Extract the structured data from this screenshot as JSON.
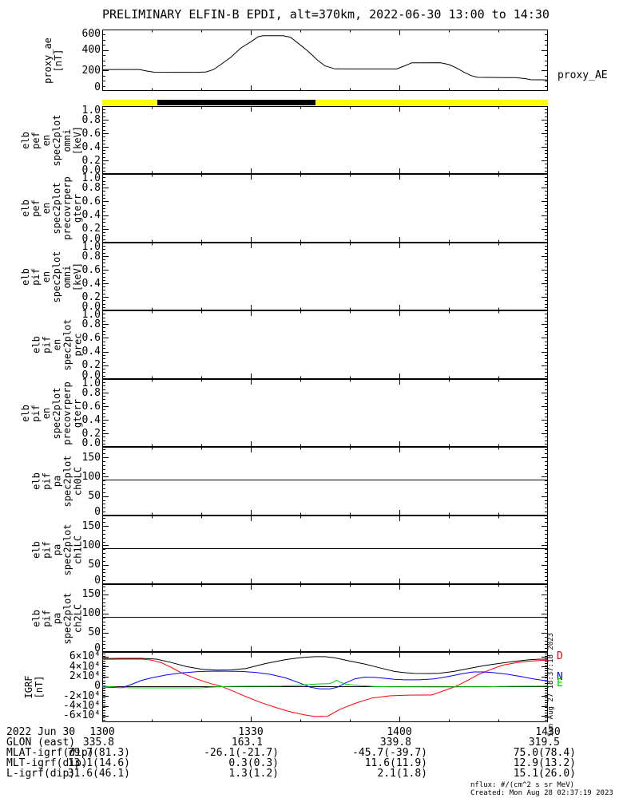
{
  "title": "PRELIMINARY ELFIN-B EPDI, alt=370km, 2022-06-30 13:00 to 14:30",
  "right_labels": {
    "proxy_ae": "proxy_AE"
  },
  "side_note": "Sun Aug 27 18:37:18 2023",
  "footer": {
    "nflux": "nflux: #/(cm^2 s sr MeV)",
    "created": "Created: Mon Aug 28 02:37:19 2023"
  },
  "time_axis": {
    "duration_min": 90,
    "major_minutes": [
      0,
      30,
      60,
      90
    ],
    "major_labels": [
      "1300",
      "1330",
      "1400",
      "1430"
    ],
    "minor_step_min": 10
  },
  "colors": {
    "bar_yellow": "#FFFF00",
    "bar_black": "#000000",
    "igrf_b": "#000000",
    "igrf_d": "#FF0000",
    "igrf_n": "#0000FF",
    "igrf_e": "#00CC00"
  },
  "bottom_table": {
    "rows": [
      {
        "label": "2022 Jun 30",
        "centered": true,
        "align_offset": 15,
        "values": [
          "1300",
          "1330",
          "1400",
          "1430"
        ]
      },
      {
        "label": "GLON (east)",
        "centered": false,
        "align_offset": 15,
        "values": [
          "335.8",
          "163.1",
          "339.8",
          "319.5"
        ]
      },
      {
        "label": "MLAT-igrf(dip)",
        "centered": false,
        "align_offset": 35,
        "values": [
          "79.7(81.3)",
          "-26.1(-21.7)",
          "-45.7(-39.7)",
          "75.0(78.4)"
        ]
      },
      {
        "label": "MLT-igrf(dip)",
        "centered": false,
        "align_offset": 35,
        "values": [
          "13.1(14.6)",
          "0.3(0.3)",
          "11.6(11.9)",
          "12.9(13.2)"
        ]
      },
      {
        "label": "L-igrf(dip)",
        "centered": false,
        "align_offset": 35,
        "values": [
          "31.6(46.1)",
          "1.3(1.2)",
          "2.1(1.8)",
          "15.1(26.0)"
        ]
      }
    ]
  },
  "chart_data": [
    {
      "id": "proxy_ae",
      "type": "line",
      "ylabel_lines": [
        "proxy_ae",
        "[nT]"
      ],
      "ylim": [
        0,
        600
      ],
      "yticks": [
        0,
        200,
        400,
        600
      ],
      "ytick_labels": [
        "0",
        "200",
        "400",
        "600"
      ],
      "yminor_step": 50,
      "series": [
        {
          "name": "proxy_AE",
          "color": "#000000",
          "points": [
            [
              0,
              208
            ],
            [
              2,
              210
            ],
            [
              7.5,
              210
            ],
            [
              9,
              195
            ],
            [
              10.5,
              183
            ],
            [
              14,
              182
            ],
            [
              19.5,
              182
            ],
            [
              21,
              186
            ],
            [
              22.5,
              210
            ],
            [
              24,
              260
            ],
            [
              26,
              330
            ],
            [
              28,
              420
            ],
            [
              30,
              480
            ],
            [
              31.5,
              530
            ],
            [
              32.5,
              540
            ],
            [
              36.5,
              540
            ],
            [
              38,
              525
            ],
            [
              40,
              450
            ],
            [
              41.5,
              390
            ],
            [
              43.5,
              300
            ],
            [
              45,
              245
            ],
            [
              47,
              216
            ],
            [
              50,
              215
            ],
            [
              59.5,
              215
            ],
            [
              61,
              245
            ],
            [
              62.5,
              274
            ],
            [
              68.3,
              276
            ],
            [
              70,
              258
            ],
            [
              71.5,
              225
            ],
            [
              73,
              185
            ],
            [
              74.5,
              150
            ],
            [
              75.8,
              133
            ],
            [
              83.5,
              130
            ],
            [
              85.5,
              120
            ],
            [
              86.5,
              110
            ],
            [
              90,
              108
            ]
          ]
        }
      ]
    },
    {
      "id": "position_bar",
      "type": "bar-indicator",
      "segments": [
        {
          "start_min": 0,
          "end_min": 90,
          "color": "#FFFF00"
        },
        {
          "start_min": 11.2,
          "end_min": 43.0,
          "color": "#000000"
        }
      ]
    },
    {
      "id": "elb_pef_en_omni",
      "type": "spectrogram-empty",
      "ylabel_lines": [
        "elb",
        "pef",
        "en",
        "spec2plot",
        "omni",
        "[keV]"
      ],
      "ylim": [
        0,
        1
      ],
      "yticks": [
        0,
        0.2,
        0.4,
        0.6,
        0.8,
        1.0
      ],
      "ytick_labels": [
        "0.0",
        "0.2",
        "0.4",
        "0.6",
        "0.8",
        "1.0"
      ],
      "yminor_step": 0.05,
      "series": []
    },
    {
      "id": "elb_pef_en_precovrperp",
      "type": "spectrogram-empty",
      "ylabel_lines": [
        "elb",
        "pef",
        "en",
        "spec2plot",
        "precovrperp",
        "gterr"
      ],
      "ylim": [
        0,
        1
      ],
      "yticks": [
        0,
        0.2,
        0.4,
        0.6,
        0.8,
        1.0
      ],
      "ytick_labels": [
        "0.0",
        "0.2",
        "0.4",
        "0.6",
        "0.8",
        "1.0"
      ],
      "yminor_step": 0.05,
      "series": []
    },
    {
      "id": "elb_pif_en_omni",
      "type": "spectrogram-empty",
      "ylabel_lines": [
        "elb",
        "pif",
        "en",
        "spec2plot",
        "omni",
        "[keV]"
      ],
      "ylim": [
        0,
        1
      ],
      "yticks": [
        0,
        0.2,
        0.4,
        0.6,
        0.8,
        1.0
      ],
      "ytick_labels": [
        "0.0",
        "0.2",
        "0.4",
        "0.6",
        "0.8",
        "1.0"
      ],
      "yminor_step": 0.05,
      "series": []
    },
    {
      "id": "elb_pif_en_prec",
      "type": "spectrogram-empty",
      "ylabel_lines": [
        "elb",
        "pif",
        "en",
        "spec2plot",
        "prec"
      ],
      "ylim": [
        0,
        1
      ],
      "yticks": [
        0,
        0.2,
        0.4,
        0.6,
        0.8,
        1.0
      ],
      "ytick_labels": [
        "0.0",
        "0.2",
        "0.4",
        "0.6",
        "0.8",
        "1.0"
      ],
      "yminor_step": 0.05,
      "series": []
    },
    {
      "id": "elb_pif_en_precovrperp",
      "type": "spectrogram-empty",
      "ylabel_lines": [
        "elb",
        "pif",
        "en",
        "spec2plot",
        "precovrperp",
        "gterr"
      ],
      "ylim": [
        0,
        1
      ],
      "yticks": [
        0,
        0.2,
        0.4,
        0.6,
        0.8,
        1.0
      ],
      "ytick_labels": [
        "0.0",
        "0.2",
        "0.4",
        "0.6",
        "0.8",
        "1.0"
      ],
      "yminor_step": 0.05,
      "series": []
    },
    {
      "id": "elb_pif_pa_ch0lc",
      "type": "pitch-angle-empty",
      "ylabel_lines": [
        "elb",
        "pif",
        "pa",
        "spec2plot",
        "ch0LC"
      ],
      "ylim": [
        0,
        177
      ],
      "yticks": [
        0,
        50,
        100,
        150
      ],
      "ytick_labels": [
        "0",
        "50",
        "100",
        "150"
      ],
      "yminor_step": 10,
      "hlines": [
        {
          "value": 92,
          "color": "#000000"
        }
      ],
      "series": []
    },
    {
      "id": "elb_pif_pa_ch1lc",
      "type": "pitch-angle-empty",
      "ylabel_lines": [
        "elb",
        "pif",
        "pa",
        "spec2plot",
        "ch1LC"
      ],
      "ylim": [
        0,
        177
      ],
      "yticks": [
        0,
        50,
        100,
        150
      ],
      "ytick_labels": [
        "0",
        "50",
        "100",
        "150"
      ],
      "yminor_step": 10,
      "hlines": [
        {
          "value": 92,
          "color": "#000000"
        }
      ],
      "series": []
    },
    {
      "id": "elb_pif_pa_ch2lc",
      "type": "pitch-angle-empty",
      "ylabel_lines": [
        "elb",
        "pif",
        "pa",
        "spec2plot",
        "ch2LC"
      ],
      "ylim": [
        0,
        177
      ],
      "yticks": [
        0,
        50,
        100,
        150
      ],
      "ytick_labels": [
        "0",
        "50",
        "100",
        "150"
      ],
      "yminor_step": 10,
      "hlines": [
        {
          "value": 92,
          "color": "#000000"
        }
      ],
      "series": []
    },
    {
      "id": "igrf",
      "type": "line",
      "ylabel_lines": [
        "IGRF",
        "[nT]"
      ],
      "ylim": [
        -73000,
        69500
      ],
      "yticks": [
        -60000,
        -40000,
        -20000,
        0,
        20000,
        40000,
        60000
      ],
      "ytick_labels": [
        "-6×10⁴",
        "-4×10⁴",
        "-2×10⁴",
        "0",
        "2×10⁴",
        "4×10⁴",
        "6×10⁴"
      ],
      "yminor_step": 5000,
      "hlines": [
        {
          "value": 0,
          "color": "#000000"
        }
      ],
      "right_series_labels": [
        {
          "text": "D",
          "color": "#FF0000",
          "value": 61000
        },
        {
          "text": "N",
          "color": "#0000FF",
          "value": 19000
        },
        {
          "text": "E",
          "color": "#00CC00",
          "value": 5000
        }
      ],
      "series": [
        {
          "name": "B",
          "color": "#000000",
          "points": [
            [
              0,
              56000
            ],
            [
              4,
              56500
            ],
            [
              8,
              56500
            ],
            [
              11,
              55000
            ],
            [
              14,
              48000
            ],
            [
              17,
              40000
            ],
            [
              20,
              34500
            ],
            [
              23,
              32800
            ],
            [
              26,
              33000
            ],
            [
              29,
              36000
            ],
            [
              33,
              46000
            ],
            [
              37,
              54000
            ],
            [
              40,
              58000
            ],
            [
              43,
              60000
            ],
            [
              45,
              60000
            ],
            [
              47,
              57500
            ],
            [
              50,
              51000
            ],
            [
              53,
              45000
            ],
            [
              56,
              37500
            ],
            [
              59,
              30000
            ],
            [
              61,
              27500
            ],
            [
              63,
              26000
            ],
            [
              66,
              25800
            ],
            [
              68,
              26200
            ],
            [
              71,
              30000
            ],
            [
              74,
              36000
            ],
            [
              77,
              41500
            ],
            [
              80,
              46000
            ],
            [
              83,
              50000
            ],
            [
              86,
              53500
            ],
            [
              88,
              54800
            ],
            [
              90,
              55000
            ]
          ]
        },
        {
          "name": "D",
          "color": "#FF0000",
          "points": [
            [
              0,
              54500
            ],
            [
              5,
              55000
            ],
            [
              8,
              55000
            ],
            [
              10,
              53000
            ],
            [
              12,
              47500
            ],
            [
              14,
              38000
            ],
            [
              16,
              27000
            ],
            [
              19,
              15000
            ],
            [
              22,
              5000
            ],
            [
              24,
              0
            ],
            [
              26,
              -8000
            ],
            [
              29,
              -21000
            ],
            [
              32,
              -33000
            ],
            [
              35,
              -43000
            ],
            [
              38,
              -52000
            ],
            [
              41,
              -58500
            ],
            [
              43,
              -61500
            ],
            [
              45.5,
              -61000
            ],
            [
              48,
              -47000
            ],
            [
              51,
              -35000
            ],
            [
              54.5,
              -24000
            ],
            [
              58,
              -19500
            ],
            [
              61,
              -18200
            ],
            [
              64,
              -18000
            ],
            [
              66.5,
              -18000
            ],
            [
              69,
              -9000
            ],
            [
              71.5,
              0
            ],
            [
              74,
              13000
            ],
            [
              76,
              24000
            ],
            [
              79,
              36000
            ],
            [
              81,
              43000
            ],
            [
              84,
              48500
            ],
            [
              87,
              51500
            ],
            [
              90,
              53000
            ]
          ]
        },
        {
          "name": "N",
          "color": "#0000FF",
          "points": [
            [
              0,
              -1500
            ],
            [
              2,
              -2500
            ],
            [
              4,
              -3000
            ],
            [
              6,
              4000
            ],
            [
              8,
              12000
            ],
            [
              10,
              17000
            ],
            [
              13,
              23000
            ],
            [
              16,
              27000
            ],
            [
              19,
              29500
            ],
            [
              22,
              30500
            ],
            [
              25,
              30500
            ],
            [
              28,
              30000
            ],
            [
              31,
              28000
            ],
            [
              34,
              24000
            ],
            [
              37,
              17000
            ],
            [
              40,
              6000
            ],
            [
              42,
              -2000
            ],
            [
              44,
              -5500
            ],
            [
              46,
              -5500
            ],
            [
              47.5,
              -2000
            ],
            [
              49,
              6000
            ],
            [
              51,
              15000
            ],
            [
              53,
              18500
            ],
            [
              55,
              18000
            ],
            [
              57,
              16000
            ],
            [
              59,
              14000
            ],
            [
              61,
              13000
            ],
            [
              64,
              13000
            ],
            [
              67,
              15000
            ],
            [
              70,
              20000
            ],
            [
              73,
              26000
            ],
            [
              75,
              29000
            ],
            [
              77,
              29000
            ],
            [
              79,
              27500
            ],
            [
              82,
              24000
            ],
            [
              85,
              19000
            ],
            [
              87,
              15000
            ],
            [
              89,
              12000
            ],
            [
              90,
              11000
            ]
          ]
        },
        {
          "name": "E",
          "color": "#00CC00",
          "points": [
            [
              0,
              300
            ],
            [
              2,
              -1500
            ],
            [
              4,
              -3000
            ],
            [
              8,
              -3300
            ],
            [
              12,
              -3300
            ],
            [
              16,
              -3300
            ],
            [
              20,
              -3200
            ],
            [
              23,
              -1500
            ],
            [
              26,
              -300
            ],
            [
              30,
              0
            ],
            [
              33,
              0
            ],
            [
              36,
              300
            ],
            [
              39,
              1500
            ],
            [
              42,
              3700
            ],
            [
              44,
              4700
            ],
            [
              46,
              5300
            ],
            [
              46.8,
              9000
            ],
            [
              47.3,
              12000
            ],
            [
              48,
              8500
            ],
            [
              49,
              4500
            ],
            [
              50.5,
              2700
            ],
            [
              52.5,
              1000
            ],
            [
              55,
              -500
            ],
            [
              58,
              -1200
            ],
            [
              62,
              -1500
            ],
            [
              66,
              -1600
            ],
            [
              70,
              -1600
            ],
            [
              74,
              -1500
            ],
            [
              78,
              -1200
            ],
            [
              80,
              -500
            ],
            [
              83,
              -200
            ],
            [
              87,
              0
            ],
            [
              90,
              300
            ]
          ]
        }
      ]
    }
  ]
}
